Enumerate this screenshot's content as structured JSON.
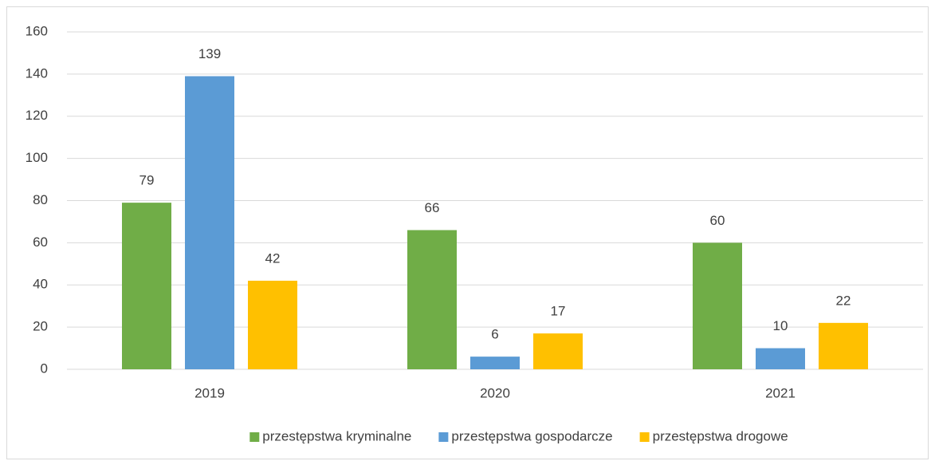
{
  "chart_data": {
    "type": "bar",
    "categories": [
      "2019",
      "2020",
      "2021"
    ],
    "series": [
      {
        "name": "przestępstwa kryminalne",
        "color": "#70ad47",
        "values": [
          79,
          66,
          60
        ]
      },
      {
        "name": "przestępstwa gospodarcze",
        "color": "#5b9bd5",
        "values": [
          139,
          6,
          10
        ]
      },
      {
        "name": "przestępstwa drogowe",
        "color": "#ffc000",
        "values": [
          42,
          17,
          22
        ]
      }
    ],
    "ylim": [
      0,
      160
    ],
    "yticks": [
      0,
      20,
      40,
      60,
      80,
      100,
      120,
      140,
      160
    ],
    "grid": true,
    "legend": "bottom"
  }
}
